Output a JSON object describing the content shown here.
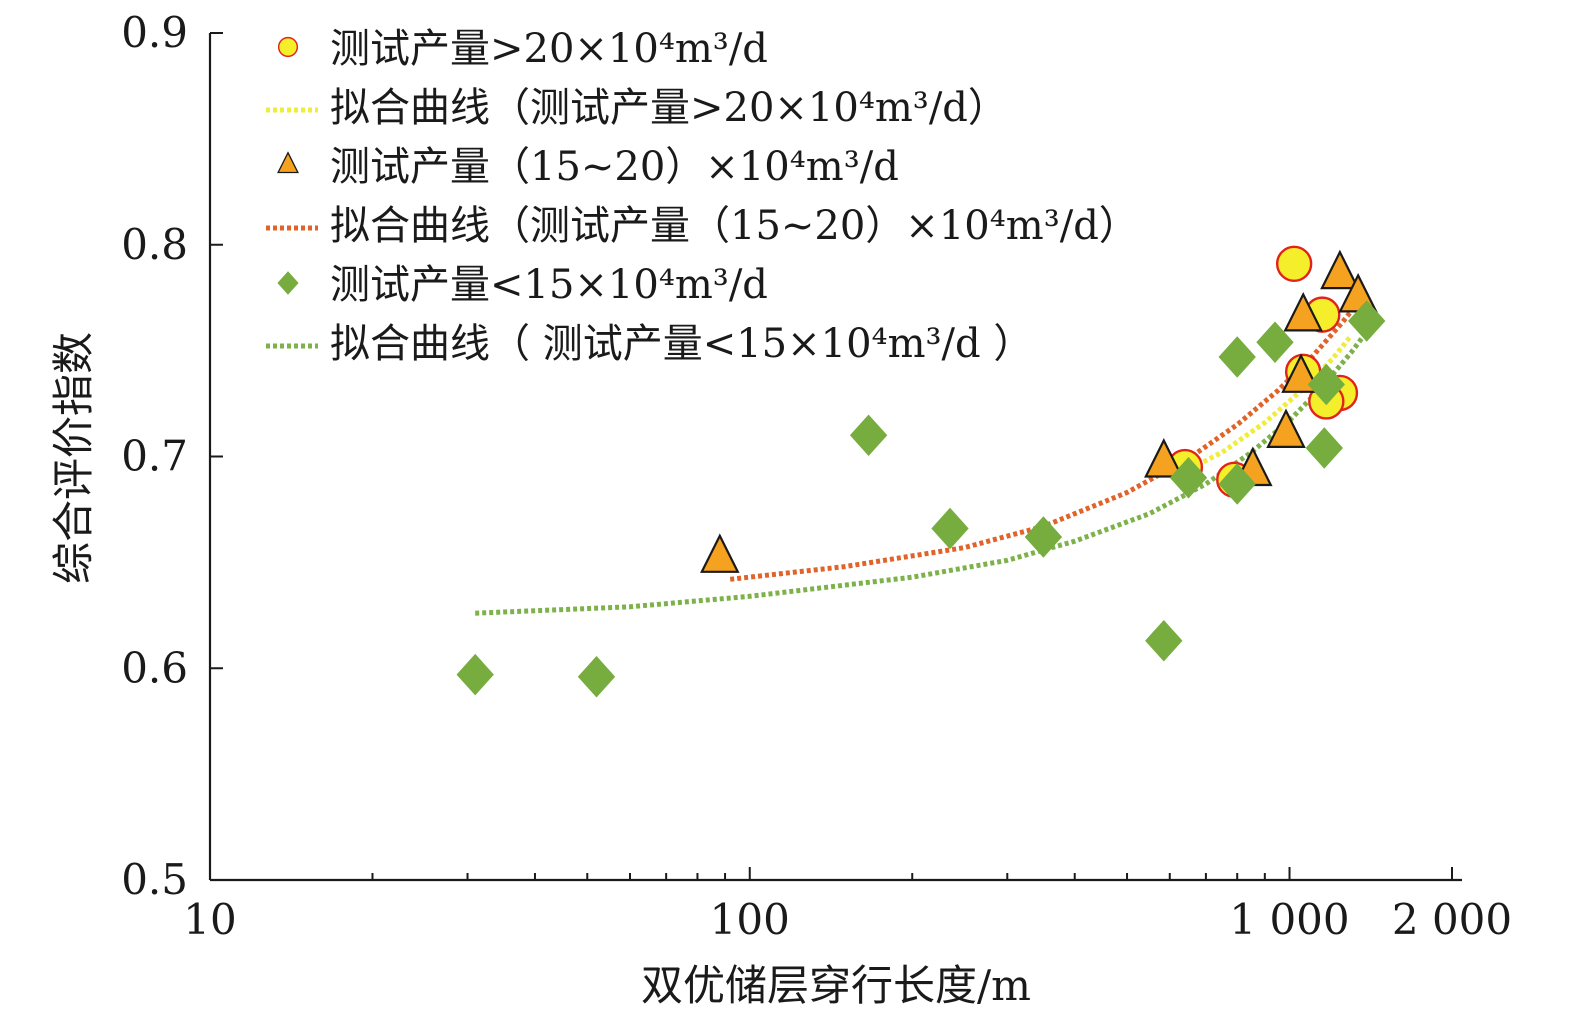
{
  "chart_data": {
    "type": "scatter",
    "xscale": "log",
    "xlabel": "双优储层穿行长度/m",
    "ylabel": "综合评价指数",
    "xlim": [
      10,
      2000
    ],
    "ylim": [
      0.5,
      0.9
    ],
    "xticks": [
      {
        "value": 10,
        "label": "10"
      },
      {
        "value": 100,
        "label": "100"
      },
      {
        "value": 1000,
        "label": "1 000"
      },
      {
        "value": 2000,
        "label": "2 000"
      }
    ],
    "yticks": [
      {
        "value": 0.5,
        "label": "0.5"
      },
      {
        "value": 0.6,
        "label": "0.6"
      },
      {
        "value": 0.7,
        "label": "0.7"
      },
      {
        "value": 0.8,
        "label": "0.8"
      },
      {
        "value": 0.9,
        "label": "0.9"
      }
    ],
    "series": [
      {
        "name": "测试产量>20×10⁴m³/d",
        "marker": "circle",
        "fill": "#f5ee2a",
        "stroke": "#e2231a",
        "points": [
          {
            "x": 1020,
            "y": 0.791
          },
          {
            "x": 1150,
            "y": 0.767
          },
          {
            "x": 1060,
            "y": 0.74
          },
          {
            "x": 1240,
            "y": 0.73
          },
          {
            "x": 1170,
            "y": 0.726
          },
          {
            "x": 640,
            "y": 0.695
          },
          {
            "x": 790,
            "y": 0.689
          }
        ]
      },
      {
        "name": "测试产量（15~20）×10⁴m³/d",
        "marker": "triangle",
        "fill": "#f4a21f",
        "stroke": "#1a1a1a",
        "points": [
          {
            "x": 1240,
            "y": 0.786
          },
          {
            "x": 1340,
            "y": 0.775
          },
          {
            "x": 1060,
            "y": 0.766
          },
          {
            "x": 1050,
            "y": 0.737
          },
          {
            "x": 985,
            "y": 0.711
          },
          {
            "x": 585,
            "y": 0.697
          },
          {
            "x": 855,
            "y": 0.693
          },
          {
            "x": 88,
            "y": 0.652
          }
        ]
      },
      {
        "name": "测试产量<15×10⁴m³/d",
        "marker": "diamond",
        "fill": "#77ad3f",
        "stroke": "#77ad3f",
        "points": [
          {
            "x": 1390,
            "y": 0.764
          },
          {
            "x": 940,
            "y": 0.754
          },
          {
            "x": 800,
            "y": 0.747
          },
          {
            "x": 1170,
            "y": 0.734
          },
          {
            "x": 1160,
            "y": 0.704
          },
          {
            "x": 166,
            "y": 0.71
          },
          {
            "x": 650,
            "y": 0.69
          },
          {
            "x": 800,
            "y": 0.687
          },
          {
            "x": 235,
            "y": 0.666
          },
          {
            "x": 350,
            "y": 0.662
          },
          {
            "x": 585,
            "y": 0.613
          },
          {
            "x": 31,
            "y": 0.597
          },
          {
            "x": 52,
            "y": 0.596
          }
        ]
      }
    ],
    "fits": [
      {
        "name": "拟合曲线（测试产量>20×10⁴m³/d）",
        "color": "#f0ec3a",
        "points": [
          {
            "x": 640,
            "y": 0.693
          },
          {
            "x": 750,
            "y": 0.702
          },
          {
            "x": 900,
            "y": 0.716
          },
          {
            "x": 1050,
            "y": 0.731
          },
          {
            "x": 1200,
            "y": 0.746
          },
          {
            "x": 1300,
            "y": 0.757
          }
        ]
      },
      {
        "name": "拟合曲线（测试产量（15~20）×10⁴m³/d）",
        "color": "#e0642a",
        "points": [
          {
            "x": 92,
            "y": 0.642
          },
          {
            "x": 150,
            "y": 0.648
          },
          {
            "x": 250,
            "y": 0.657
          },
          {
            "x": 350,
            "y": 0.667
          },
          {
            "x": 500,
            "y": 0.683
          },
          {
            "x": 650,
            "y": 0.699
          },
          {
            "x": 800,
            "y": 0.715
          },
          {
            "x": 950,
            "y": 0.731
          },
          {
            "x": 1100,
            "y": 0.747
          },
          {
            "x": 1250,
            "y": 0.763
          },
          {
            "x": 1360,
            "y": 0.775
          }
        ]
      },
      {
        "name": "拟合曲线（ 测试产量<15×10⁴m³/d ）",
        "color": "#7db24a",
        "points": [
          {
            "x": 31,
            "y": 0.626
          },
          {
            "x": 60,
            "y": 0.629
          },
          {
            "x": 100,
            "y": 0.634
          },
          {
            "x": 200,
            "y": 0.643
          },
          {
            "x": 300,
            "y": 0.651
          },
          {
            "x": 400,
            "y": 0.66
          },
          {
            "x": 550,
            "y": 0.673
          },
          {
            "x": 700,
            "y": 0.687
          },
          {
            "x": 850,
            "y": 0.702
          },
          {
            "x": 1000,
            "y": 0.717
          },
          {
            "x": 1150,
            "y": 0.733
          },
          {
            "x": 1300,
            "y": 0.749
          },
          {
            "x": 1400,
            "y": 0.76
          }
        ]
      }
    ],
    "legend": {
      "placement": "top-left",
      "entries": [
        {
          "type": "marker",
          "marker": "circle",
          "series": 0,
          "label": "测试产量>20×10⁴m³/d"
        },
        {
          "type": "line",
          "fit": 0,
          "label": "拟合曲线（测试产量>20×10⁴m³/d）"
        },
        {
          "type": "marker",
          "marker": "triangle",
          "series": 1,
          "label": "测试产量（15~20）×10⁴m³/d"
        },
        {
          "type": "line",
          "fit": 1,
          "label": "拟合曲线（测试产量（15~20）×10⁴m³/d）"
        },
        {
          "type": "marker",
          "marker": "diamond",
          "series": 2,
          "label": "测试产量<15×10⁴m³/d"
        },
        {
          "type": "line",
          "fit": 2,
          "label": "拟合曲线（ 测试产量<15×10⁴m³/d ）"
        }
      ]
    }
  }
}
